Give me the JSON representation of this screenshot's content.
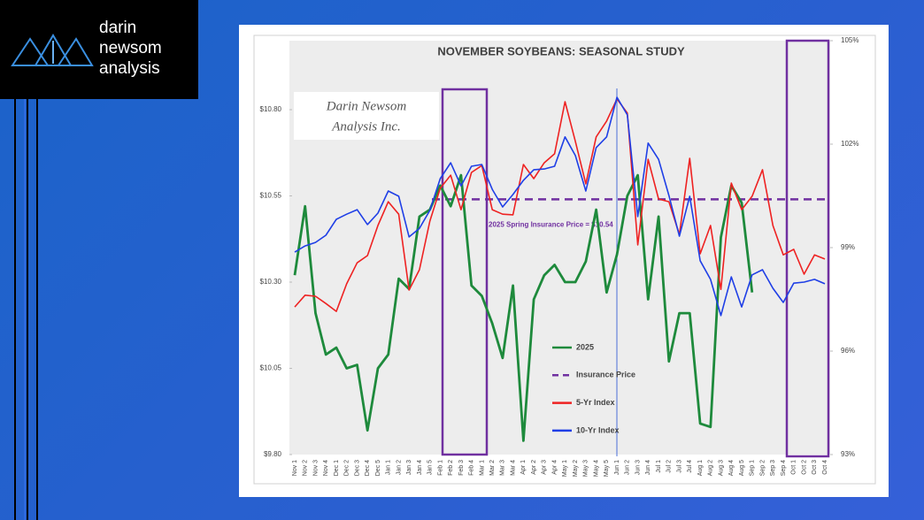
{
  "logo": {
    "line1": "darin",
    "line2": "newsom",
    "line3": "analysis"
  },
  "chart_data": {
    "type": "line",
    "title": "NOVEMBER SOYBEANS: SEASONAL STUDY",
    "watermark": [
      "Darin Newsom",
      "Analysis Inc."
    ],
    "categories": [
      "Nov 1",
      "Nov 2",
      "Nov 3",
      "Nov 4",
      "Dec 1",
      "Dec 2",
      "Dec 3",
      "Dec 4",
      "Dec 5",
      "Jan 1",
      "Jan 2",
      "Jan 3",
      "Jan 4",
      "Jan 5",
      "Feb 1",
      "Feb 2",
      "Feb 3",
      "Feb 4",
      "Mar 1",
      "Mar 2",
      "Mar 3",
      "Mar 4",
      "Apr 1",
      "Apr 2",
      "Apr 3",
      "Apr 4",
      "May 1",
      "May 2",
      "May 3",
      "May 4",
      "May 5",
      "Jun 1",
      "Jun 2",
      "Jun 3",
      "Jun 4",
      "Jul 1",
      "Jul 2",
      "Jul 3",
      "Jul 4",
      "Aug 1",
      "Aug 2",
      "Aug 3",
      "Aug 4",
      "Aug 5",
      "Sep 1",
      "Sep 2",
      "Sep 3",
      "Sep 4",
      "Oct 1",
      "Oct 2",
      "Oct 3",
      "Oct 4"
    ],
    "ylim": [
      9.8,
      11.0
    ],
    "yticks": [
      {
        "value": 9.8,
        "label": "$9.80"
      },
      {
        "value": 10.05,
        "label": "$10.05"
      },
      {
        "value": 10.3,
        "label": "$10.30"
      },
      {
        "value": 10.55,
        "label": "$10.55"
      },
      {
        "value": 10.8,
        "label": "$10.80"
      }
    ],
    "y2lim": [
      93,
      105
    ],
    "y2ticks": [
      {
        "value": 93,
        "label": "93%"
      },
      {
        "value": 96,
        "label": "96%"
      },
      {
        "value": 99,
        "label": "99%"
      },
      {
        "value": 102,
        "label": "102%"
      },
      {
        "value": 105,
        "label": "105%"
      }
    ],
    "series": [
      {
        "name": "2025",
        "color": "#1e8a3c",
        "values": [
          10.32,
          10.52,
          10.21,
          10.09,
          10.11,
          10.05,
          10.06,
          9.87,
          10.05,
          10.09,
          10.31,
          10.28,
          10.49,
          10.51,
          10.58,
          10.52,
          10.61,
          10.29,
          10.26,
          10.18,
          10.08,
          10.29,
          9.84,
          10.25,
          10.32,
          10.35,
          10.3,
          10.3,
          10.36,
          10.51,
          10.27,
          10.38,
          10.55,
          10.61,
          10.25,
          10.49,
          10.07,
          10.21,
          10.21,
          9.89,
          9.88,
          10.43,
          10.58,
          10.53,
          10.27,
          null,
          null,
          null,
          null,
          null,
          null,
          null
        ]
      },
      {
        "name": "5-Yr Index",
        "color": "#ee2222",
        "axis": "y2",
        "values": [
          97.28,
          97.62,
          97.59,
          97.38,
          97.15,
          97.95,
          98.56,
          98.77,
          99.64,
          100.33,
          99.97,
          97.77,
          98.36,
          99.77,
          100.72,
          101.1,
          100.1,
          101.18,
          101.38,
          100.1,
          99.97,
          99.95,
          101.41,
          101.0,
          101.46,
          101.72,
          103.23,
          102.08,
          100.85,
          102.21,
          102.67,
          103.31,
          102.9,
          99.08,
          101.56,
          100.41,
          100.33,
          99.38,
          101.59,
          98.82,
          99.64,
          97.79,
          100.87,
          100.1,
          100.49,
          101.26,
          99.64,
          98.79,
          98.95,
          98.23,
          98.79,
          98.67
        ]
      },
      {
        "name": "10-Yr Index",
        "color": "#1f3fe6",
        "axis": "y2",
        "values": [
          98.87,
          99.05,
          99.15,
          99.36,
          99.82,
          99.97,
          100.1,
          99.67,
          100.0,
          100.64,
          100.49,
          99.31,
          99.56,
          100.08,
          101.0,
          101.46,
          100.79,
          101.36,
          101.41,
          100.69,
          100.18,
          100.54,
          100.95,
          101.26,
          101.28,
          101.36,
          102.21,
          101.67,
          100.64,
          101.9,
          102.21,
          103.36,
          102.85,
          99.9,
          102.03,
          101.56,
          100.51,
          99.33,
          100.49,
          98.62,
          98.08,
          97.03,
          98.15,
          97.28,
          98.21,
          98.36,
          97.82,
          97.41,
          97.97,
          98.0,
          98.08,
          97.95
        ]
      }
    ],
    "reference_line": {
      "name": "Insurance Price",
      "value": 10.54,
      "color": "#7030a0",
      "annotation": "2025 Spring Insurance Price = $10.54"
    }
  }
}
